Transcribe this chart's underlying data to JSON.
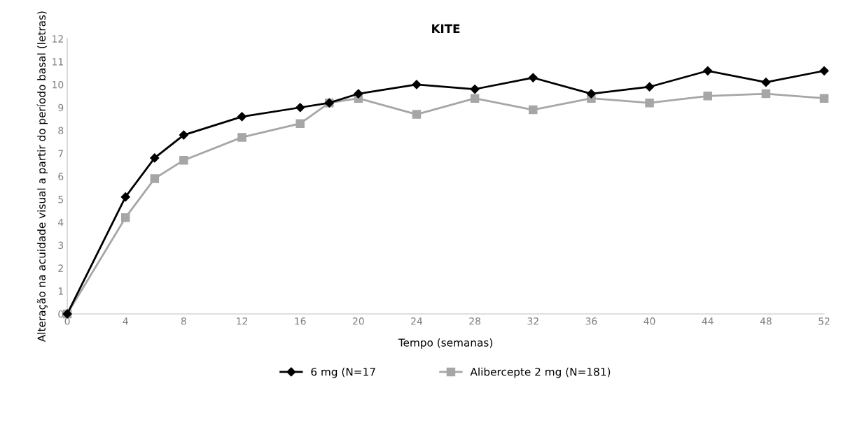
{
  "chart_data": {
    "type": "line",
    "title": "KITE",
    "xlabel": "Tempo (semanas)",
    "ylabel": "Alteração na acuidade visual a partir do período basal (letras)",
    "x": [
      0,
      4,
      6,
      8,
      12,
      16,
      18,
      20,
      24,
      28,
      32,
      36,
      40,
      44,
      48,
      52
    ],
    "series": [
      {
        "name": "6 mg (N=17",
        "color": "#000000",
        "marker": "diamond",
        "values": [
          0,
          5.1,
          6.8,
          7.8,
          8.6,
          9.0,
          9.2,
          9.6,
          10.0,
          9.8,
          10.3,
          9.6,
          9.9,
          10.6,
          10.1,
          10.6
        ]
      },
      {
        "name": "Alibercepte 2 mg (N=181)",
        "color": "#a6a6a6",
        "marker": "square",
        "values": [
          0,
          4.2,
          5.9,
          6.7,
          7.7,
          8.3,
          9.2,
          9.4,
          8.7,
          9.4,
          8.9,
          9.4,
          9.2,
          9.5,
          9.6,
          9.4
        ]
      }
    ],
    "xlim": [
      0,
      52
    ],
    "xticks": [
      0,
      4,
      8,
      12,
      16,
      20,
      24,
      28,
      32,
      36,
      40,
      44,
      48,
      52
    ],
    "ylim": [
      0,
      12
    ],
    "yticks": [
      0,
      1,
      2,
      3,
      4,
      5,
      6,
      7,
      8,
      9,
      10,
      11,
      12
    ],
    "grid": false,
    "legend": "bottom",
    "line_style": "solid"
  }
}
